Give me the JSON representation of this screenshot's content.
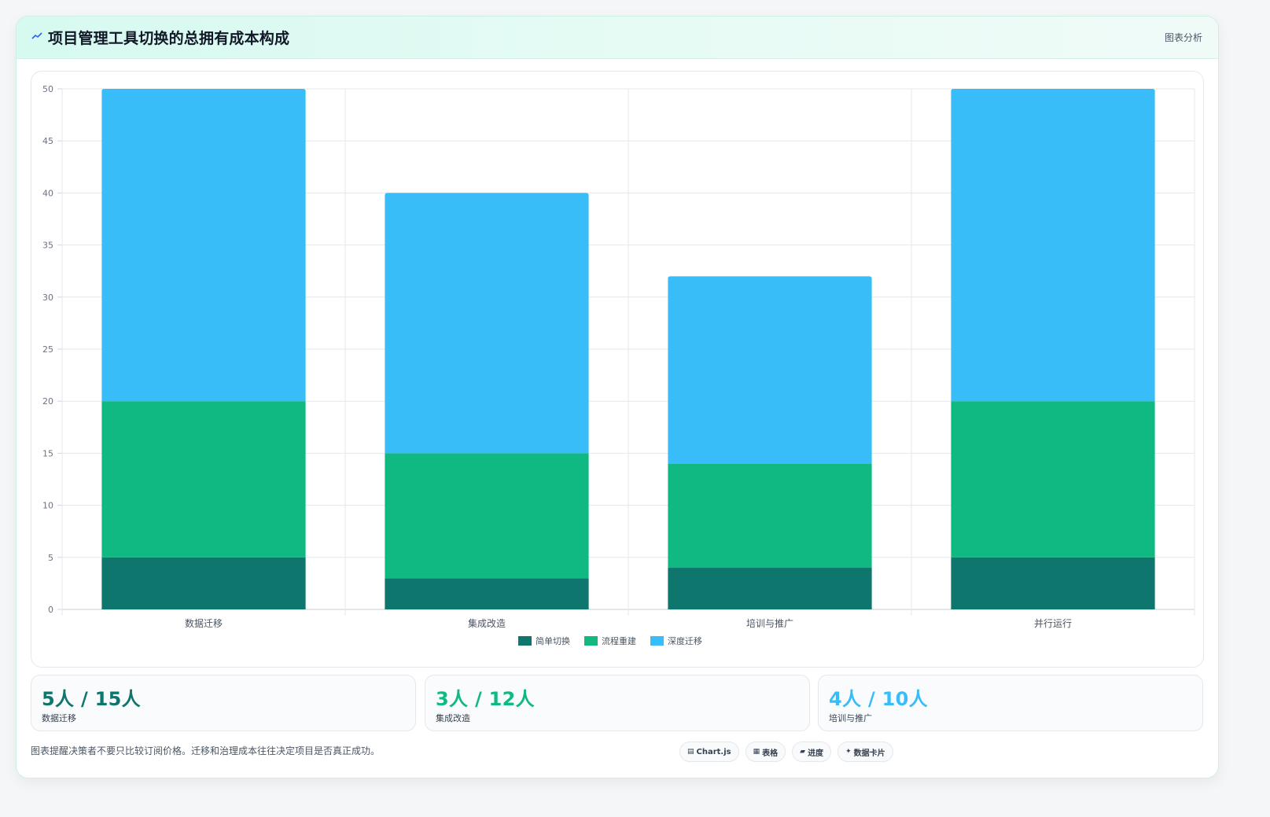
{
  "header": {
    "icon": "trend-line-icon",
    "title": "项目管理工具切换的总拥有成本构成",
    "tag": "图表分析"
  },
  "chart_data": {
    "type": "bar",
    "stacked": true,
    "categories": [
      "数据迁移",
      "集成改造",
      "培训与推广",
      "并行运行"
    ],
    "series": [
      {
        "name": "简单切换",
        "color": "#0f766e",
        "values": [
          5,
          3,
          4,
          5
        ]
      },
      {
        "name": "流程重建",
        "color": "#10b981",
        "values": [
          15,
          12,
          10,
          15
        ]
      },
      {
        "name": "深度迁移",
        "color": "#38bdf8",
        "values": [
          30,
          25,
          18,
          30
        ]
      }
    ],
    "ylim": [
      0,
      50
    ],
    "yticks": [
      0,
      5,
      10,
      15,
      20,
      25,
      30,
      35,
      40,
      45,
      50
    ],
    "grid": true,
    "legend": "bottom-center",
    "title": "",
    "xlabel": "",
    "ylabel": ""
  },
  "stats": [
    {
      "value": "5人 / 15人",
      "label": "数据迁移",
      "color": "#0f766e"
    },
    {
      "value": "3人 / 12人",
      "label": "集成改造",
      "color": "#10b981"
    },
    {
      "value": "4人 / 10人",
      "label": "培训与推广",
      "color": "#38bdf8"
    }
  ],
  "footer": {
    "note": "图表提醒决策者不要只比较订阅价格。迁移和治理成本往往决定项目是否真正成功。",
    "chips": [
      {
        "icon": "chart-icon",
        "glyph": "▤",
        "label": "Chart.js"
      },
      {
        "icon": "table-icon",
        "glyph": "▦",
        "label": "表格"
      },
      {
        "icon": "progress-icon",
        "glyph": "▰",
        "label": "进度"
      },
      {
        "icon": "data-card-icon",
        "glyph": "✦",
        "label": "数据卡片"
      }
    ]
  }
}
